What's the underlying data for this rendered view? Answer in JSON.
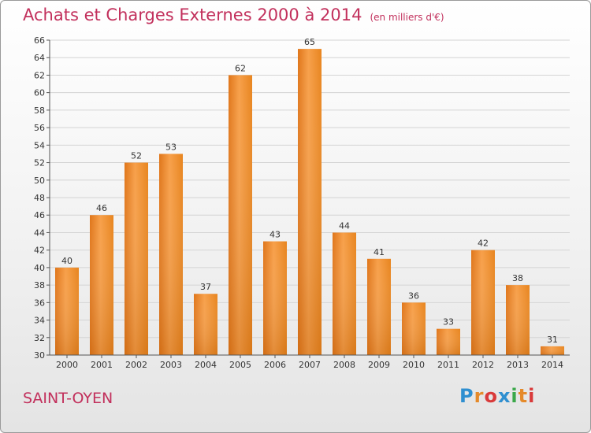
{
  "title": "Achats et Charges Externes 2000 à 2014",
  "unit": "(en milliers d'€)",
  "city": "SAINT-OYEN",
  "logo": {
    "letters": [
      "P",
      "r",
      "o",
      "x",
      "i",
      "t",
      "i"
    ],
    "colors": [
      "#2f8fd0",
      "#e58a2a",
      "#d93a3a",
      "#2f8fd0",
      "#3aa84a",
      "#e58a2a",
      "#d93a3a"
    ]
  },
  "chart_data": {
    "type": "bar",
    "categories": [
      "2000",
      "2001",
      "2002",
      "2003",
      "2004",
      "2005",
      "2006",
      "2007",
      "2008",
      "2009",
      "2010",
      "2011",
      "2012",
      "2013",
      "2014"
    ],
    "values": [
      40,
      46,
      52,
      53,
      37,
      62,
      43,
      65,
      44,
      41,
      36,
      33,
      42,
      38,
      31
    ],
    "ylim": [
      30,
      66
    ],
    "ytick_step": 2,
    "grid": true,
    "bar_color": "#f0932f"
  }
}
